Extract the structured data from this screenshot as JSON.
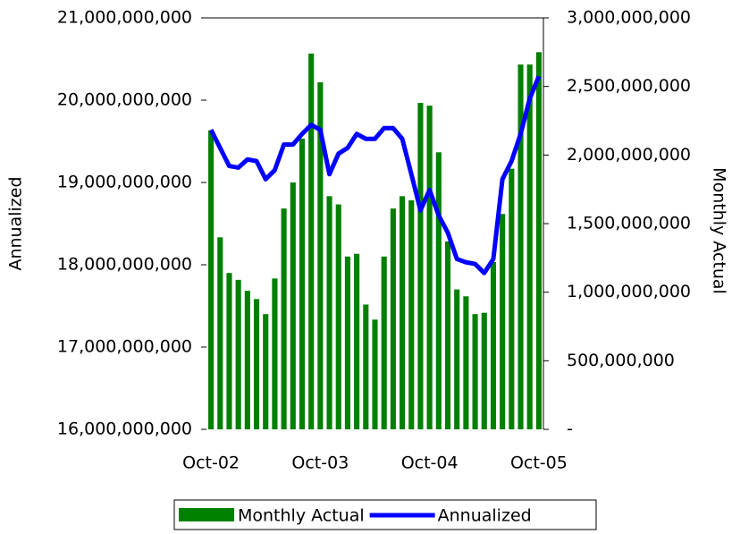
{
  "chart_data": {
    "type": "bar-line",
    "categories": [
      "Oct-02",
      null,
      null,
      null,
      null,
      null,
      null,
      null,
      null,
      null,
      null,
      null,
      "Oct-03",
      null,
      null,
      null,
      null,
      null,
      null,
      null,
      null,
      null,
      null,
      null,
      "Oct-04",
      null,
      null,
      null,
      null,
      null,
      null,
      null,
      null,
      null,
      null,
      null,
      "Oct-05"
    ],
    "series": [
      {
        "name": "Monthly Actual",
        "type": "bar",
        "axis": "y2",
        "color": "#008000",
        "values": [
          2180000000,
          1400000000,
          1140000000,
          1090000000,
          1010000000,
          950000000,
          840000000,
          1100000000,
          1610000000,
          1800000000,
          2120000000,
          2740000000,
          2530000000,
          1700000000,
          1640000000,
          1260000000,
          1280000000,
          910000000,
          800000000,
          1260000000,
          1610000000,
          1700000000,
          1670000000,
          2380000000,
          2360000000,
          2020000000,
          1370000000,
          1020000000,
          970000000,
          840000000,
          850000000,
          1220000000,
          1570000000,
          1900000000,
          2660000000,
          2660000000,
          2750000000
        ]
      },
      {
        "name": "Annualized",
        "type": "line",
        "axis": "y",
        "color": "#0000ff",
        "values": [
          19640000000,
          19420000000,
          19200000000,
          19180000000,
          19280000000,
          19260000000,
          19040000000,
          19150000000,
          19460000000,
          19460000000,
          19590000000,
          19700000000,
          19640000000,
          19100000000,
          19350000000,
          19420000000,
          19590000000,
          19530000000,
          19530000000,
          19660000000,
          19660000000,
          19530000000,
          19100000000,
          18660000000,
          18910000000,
          18600000000,
          18390000000,
          18070000000,
          18030000000,
          18010000000,
          17900000000,
          18070000000,
          19040000000,
          19260000000,
          19590000000,
          20020000000,
          20290000000
        ]
      }
    ],
    "ylabel": "Annualized",
    "y2label": "Monthly Actual",
    "ylim": [
      16000000000,
      21000000000
    ],
    "yticks": [
      {
        "value": 16000000000,
        "label": "16,000,000,000"
      },
      {
        "value": 17000000000,
        "label": "17,000,000,000"
      },
      {
        "value": 18000000000,
        "label": "18,000,000,000"
      },
      {
        "value": 19000000000,
        "label": "19,000,000,000"
      },
      {
        "value": 20000000000,
        "label": "20,000,000,000"
      },
      {
        "value": 21000000000,
        "label": "21,000,000,000"
      }
    ],
    "y2lim": [
      0,
      3000000000
    ],
    "y2ticks": [
      {
        "value": 0,
        "label": "-"
      },
      {
        "value": 500000000,
        "label": "500,000,000"
      },
      {
        "value": 1000000000,
        "label": "1,000,000,000"
      },
      {
        "value": 1500000000,
        "label": "1,500,000,000"
      },
      {
        "value": 2000000000,
        "label": "2,000,000,000"
      },
      {
        "value": 2500000000,
        "label": "2,500,000,000"
      },
      {
        "value": 3000000000,
        "label": "3,000,000,000"
      }
    ],
    "legend": "bottom"
  }
}
